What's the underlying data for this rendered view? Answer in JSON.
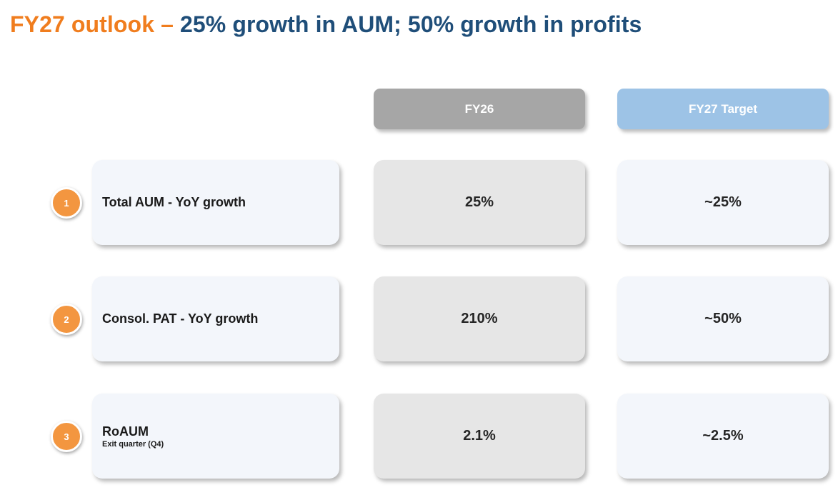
{
  "title": {
    "accent": "FY27 outlook –",
    "main": "25% growth in AUM; 50% growth in profits"
  },
  "columns": {
    "fy26": "FY26",
    "fy27": "FY27 Target"
  },
  "rows": [
    {
      "number": "1",
      "label": "Total AUM - YoY growth",
      "sublabel": "",
      "fy26": "25%",
      "fy27": "~25%"
    },
    {
      "number": "2",
      "label": "Consol. PAT - YoY growth",
      "sublabel": "",
      "fy26": "210%",
      "fy27": "~50%"
    },
    {
      "number": "3",
      "label": "RoAUM",
      "sublabel": "Exit quarter (Q4)",
      "fy26": "2.1%",
      "fy27": "~2.5%"
    }
  ],
  "colors": {
    "accent": "#f07d1e",
    "title_blue": "#1f4e79",
    "fy26_header": "#a6a6a6",
    "fy27_header": "#9dc3e6",
    "badge": "#f39640"
  }
}
